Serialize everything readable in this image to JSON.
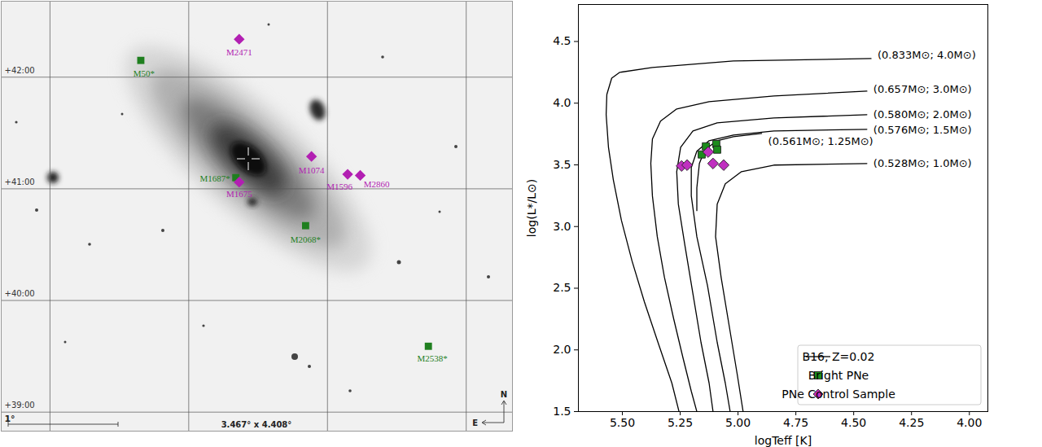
{
  "chart_data": [
    {
      "type": "scatter",
      "xlim": [
        13.64,
        7.56
      ],
      "ylim": [
        38.83,
        42.68
      ],
      "xticks": [
        13.06,
        11.41,
        9.76,
        8.11
      ],
      "yticks": [
        {
          "value": 39,
          "label": "+39:00"
        },
        {
          "value": 40,
          "label": "+40:00"
        },
        {
          "value": 41,
          "label": "+41:00"
        },
        {
          "value": 42,
          "label": "+42:00"
        }
      ],
      "grid": true,
      "tick_labels": "y",
      "series": [
        {
          "color": "#1f7f1f",
          "marker": "square",
          "labels": [
            "M50*",
            "M1687*",
            "M2068*",
            "M2538*"
          ],
          "x": [
            11.98,
            10.85,
            10.02,
            8.56
          ],
          "y": [
            42.15,
            41.1,
            40.67,
            39.59
          ]
        },
        {
          "color": "#b21fb2",
          "marker": "diamond",
          "labels": [
            "M2471",
            "M1074",
            "M1596",
            "M2860",
            "M1675"
          ],
          "x": [
            10.81,
            9.95,
            9.52,
            9.37,
            10.81
          ],
          "y": [
            42.34,
            41.29,
            41.13,
            41.12,
            41.06
          ]
        }
      ],
      "annotations": {
        "scale_bar": "1°",
        "field_size": "3.467° x 4.408°",
        "compass": [
          "N",
          "E"
        ]
      }
    },
    {
      "type": "line",
      "xlabel": "logTeff [K]",
      "ylabel": "log(L*/L⊙)",
      "xlim": [
        5.69,
        3.92
      ],
      "ylim": [
        1.5,
        4.8
      ],
      "xticks": [
        {
          "value": 5.5,
          "label": "5.50"
        },
        {
          "value": 5.25,
          "label": "5.25"
        },
        {
          "value": 5,
          "label": "5.00"
        },
        {
          "value": 4.75,
          "label": "4.75"
        },
        {
          "value": 4.5,
          "label": "4.50"
        },
        {
          "value": 4.25,
          "label": "4.25"
        },
        {
          "value": 4,
          "label": "4.00"
        }
      ],
      "yticks": [
        1.5,
        {
          "value": 2,
          "label": "2.0"
        },
        2.5,
        {
          "value": 3,
          "label": "3.0"
        },
        3.5,
        {
          "value": 4,
          "label": "4.0"
        },
        4.5
      ],
      "grid": false,
      "legend": "lower right",
      "series": [
        {
          "name": "B16, Z=0.02",
          "type": "line",
          "color": "#000000",
          "line_style": "solid",
          "tracks": [
            {
              "label": "(0.833M⊙; 4.0M⊙)",
              "x": [
                4.425,
                5.02,
                5.37,
                5.511,
                5.546,
                5.567,
                5.57,
                5.56,
                5.539,
                5.504,
                5.458,
                5.405,
                5.346,
                5.286,
                5.255
              ],
              "y": [
                4.362,
                4.342,
                4.289,
                4.25,
                4.203,
                4.071,
                3.907,
                3.643,
                3.379,
                3.05,
                2.72,
                2.391,
                2.061,
                1.731,
                1.5
              ]
            },
            {
              "label": "(0.657M⊙; 3.0M⊙)",
              "x": [
                4.443,
                4.845,
                5.125,
                5.265,
                5.335,
                5.37,
                5.377,
                5.37,
                5.349,
                5.318,
                5.279,
                5.237,
                5.202,
                5.178
              ],
              "y": [
                4.098,
                4.058,
                4.012,
                3.953,
                3.854,
                3.709,
                3.511,
                3.248,
                2.918,
                2.588,
                2.259,
                1.929,
                1.665,
                1.5
              ]
            },
            {
              "label": "(0.580M⊙; 2.0M⊙)",
              "x": [
                4.443,
                4.845,
                5.09,
                5.195,
                5.248,
                5.265,
                5.258,
                5.23,
                5.195,
                5.16,
                5.125,
                5.108
              ],
              "y": [
                3.907,
                3.88,
                3.841,
                3.775,
                3.643,
                3.445,
                3.182,
                2.852,
                2.456,
                2.061,
                1.731,
                1.5
              ]
            },
            {
              "label": "(0.576M⊙; 1.5M⊙)",
              "x": [
                4.443,
                4.845,
                5.02,
                5.125,
                5.178,
                5.202,
                5.202,
                5.178,
                5.132,
                5.09,
                5.055,
                5.034
              ],
              "y": [
                3.788,
                3.775,
                3.742,
                3.696,
                3.61,
                3.478,
                3.248,
                2.918,
                2.522,
                2.061,
                1.731,
                1.5
              ]
            },
            {
              "label": "(0.561M⊙; 1.25M⊙)",
              "x": [
                4.898,
                5.02,
                5.09,
                5.143,
                5.167,
                5.178,
                5.178
              ],
              "y": [
                3.755,
                3.729,
                3.696,
                3.623,
                3.511,
                3.313,
                3.129
              ]
            },
            {
              "label": "(0.528M⊙; 1.0M⊙)",
              "x": [
                4.443,
                4.845,
                4.985,
                5.055,
                5.09,
                5.097,
                5.073,
                5.038,
                5.003,
                4.978
              ],
              "y": [
                3.511,
                3.498,
                3.445,
                3.346,
                3.182,
                2.918,
                2.588,
                2.193,
                1.797,
                1.5
              ]
            }
          ]
        },
        {
          "name": "Bright PNe",
          "type": "scatter",
          "color": "#1c8c1c",
          "marker": "square",
          "x": [
            5.157,
            5.139,
            5.094,
            5.09
          ],
          "y": [
            3.584,
            3.65,
            3.669,
            3.623
          ]
        },
        {
          "name": "PNe Control Sample",
          "type": "scatter",
          "color": "#c030c0",
          "marker": "diamond",
          "x": [
            5.244,
            5.22,
            5.129,
            5.108,
            5.062
          ],
          "y": [
            3.491,
            3.498,
            3.604,
            3.511,
            3.498
          ]
        }
      ]
    }
  ]
}
